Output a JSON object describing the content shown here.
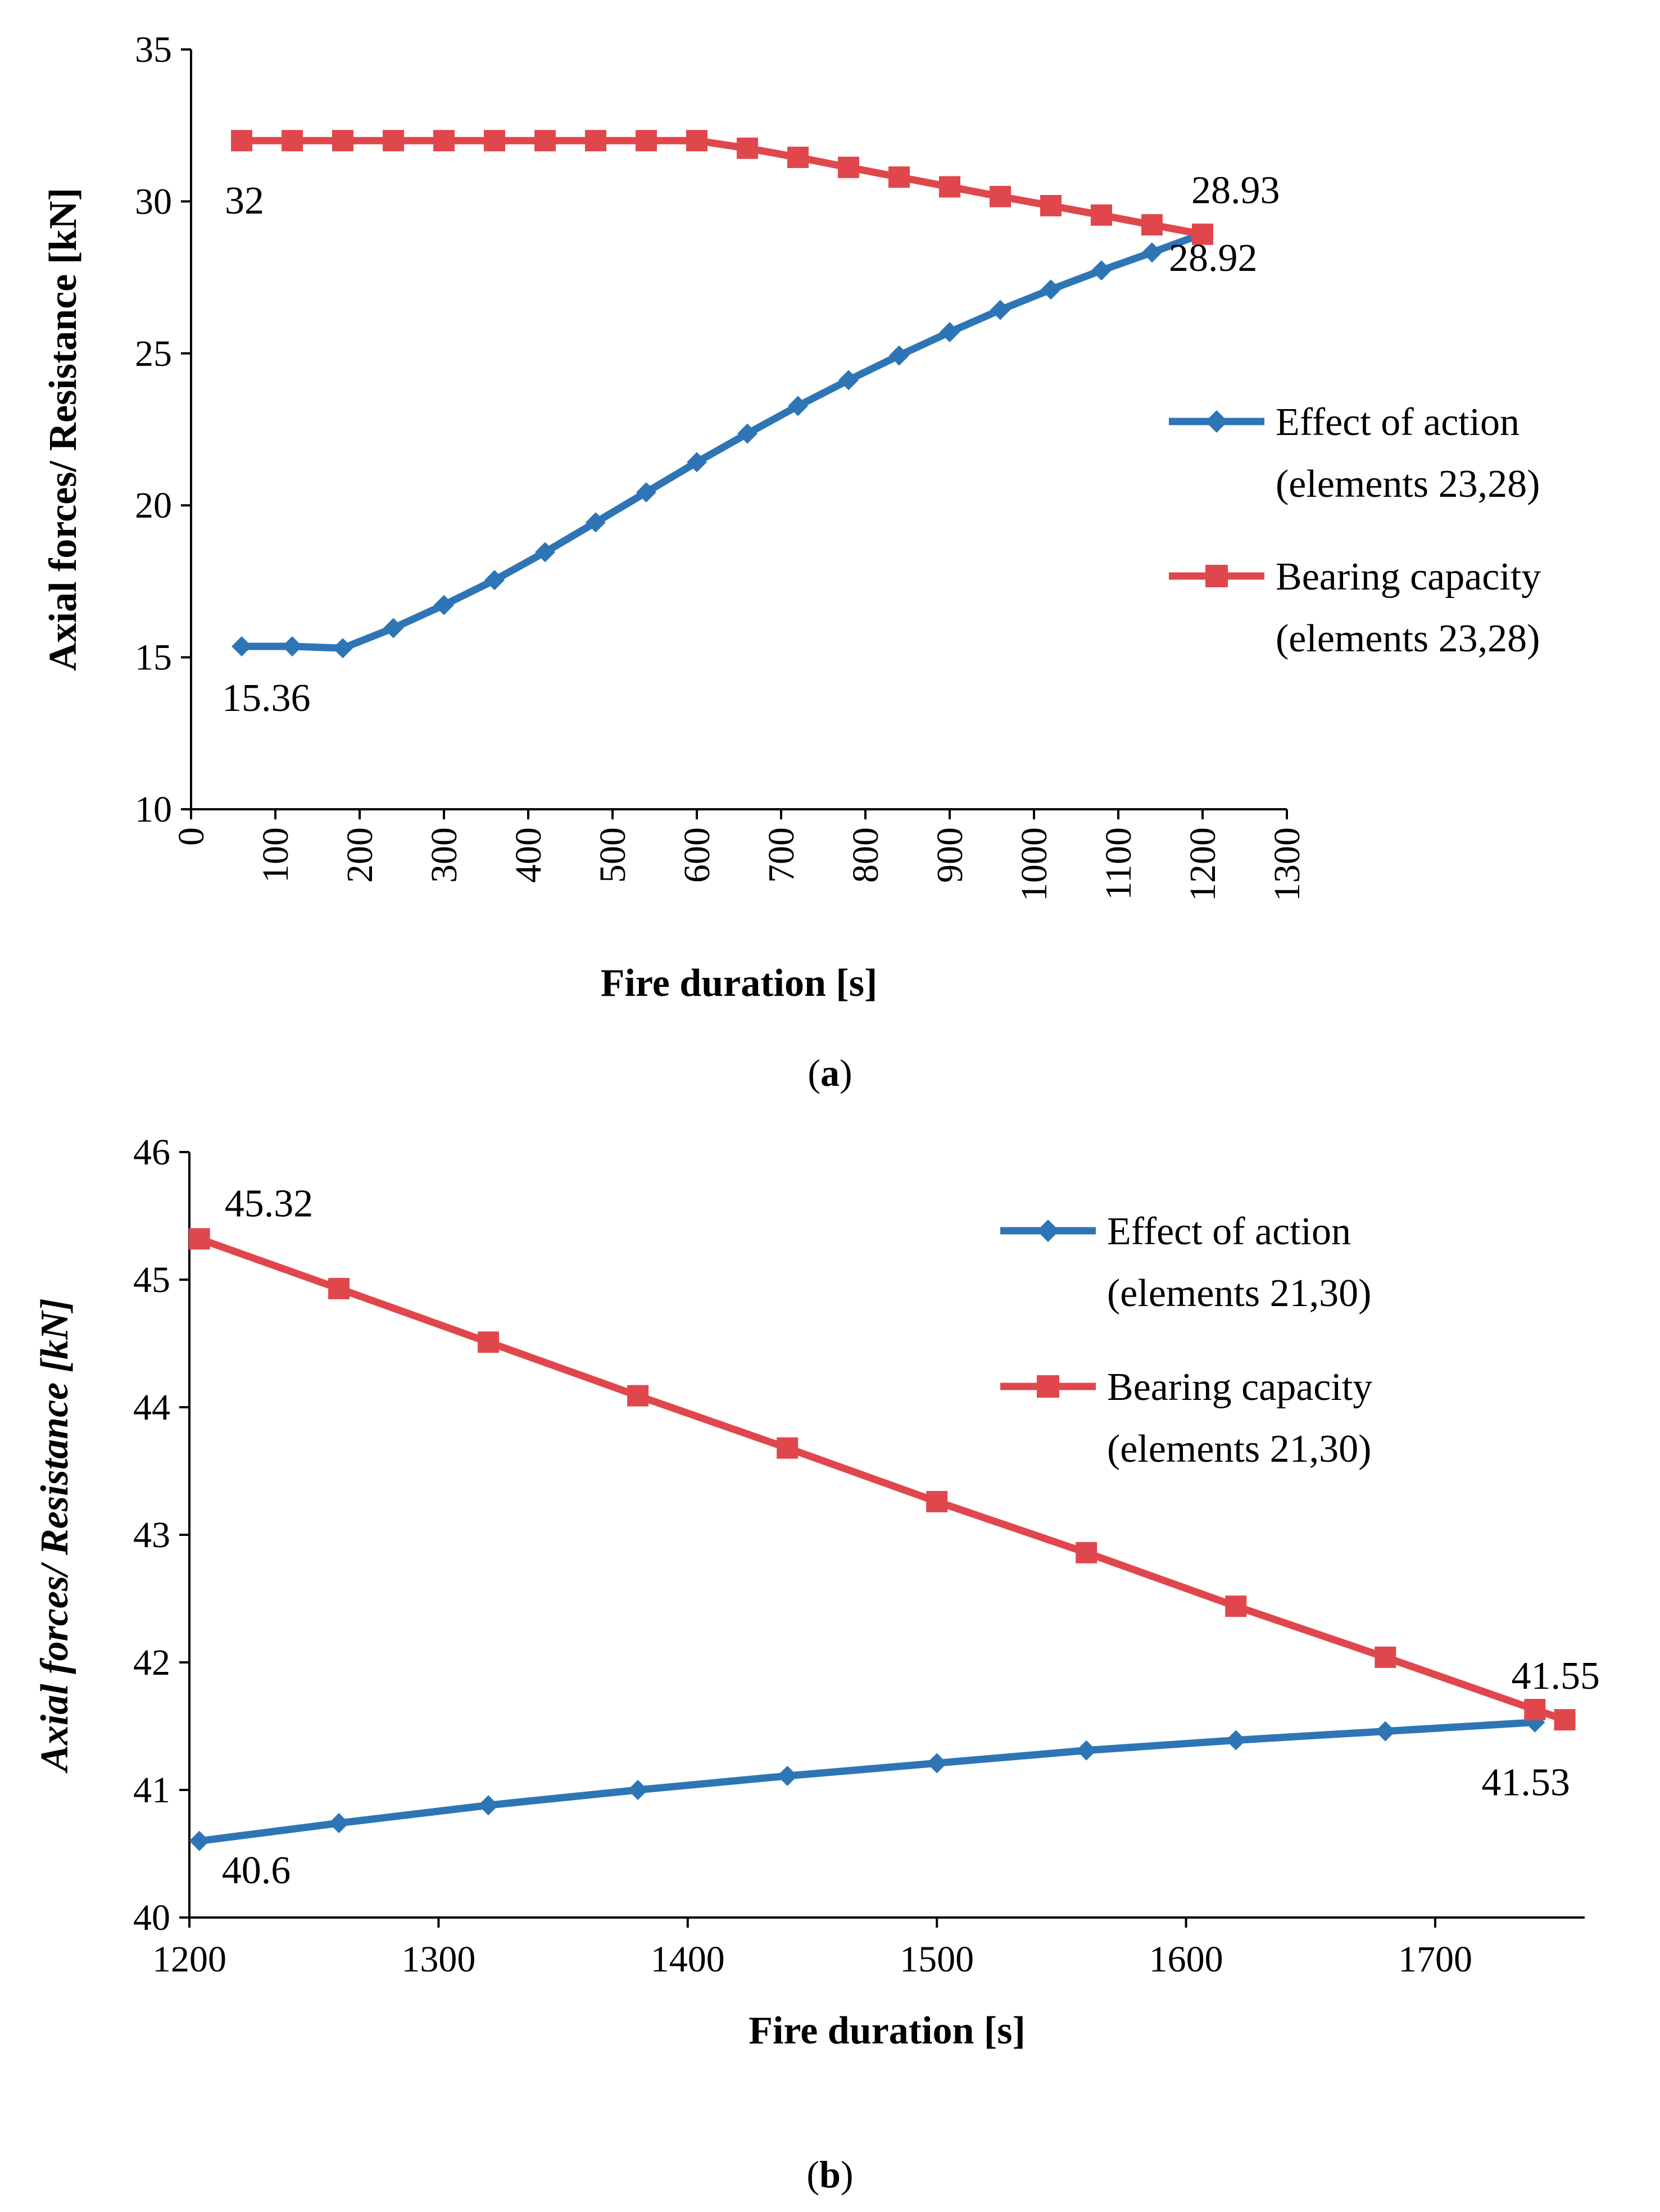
{
  "figure": {
    "panel_a_caption": {
      "open": "(",
      "letter": "a",
      "close": ")"
    },
    "panel_b_caption": {
      "open": "(",
      "letter": "b",
      "close": ")"
    }
  },
  "colors": {
    "series_blue": "#2E75B6",
    "series_red": "#E0474C",
    "axis": "#000000"
  },
  "chart_data": [
    {
      "type": "line",
      "xlabel": "Fire duration [s]",
      "ylabel": "Axial forces/ Resistance [kN]",
      "ylabel_italic": false,
      "xlim": [
        0,
        1300
      ],
      "ylim": [
        10,
        35
      ],
      "x_ticks": [
        "0",
        "100",
        "200",
        "300",
        "400",
        "500",
        "600",
        "700",
        "800",
        "900",
        "1000",
        "1100",
        "1200",
        "1300"
      ],
      "y_ticks": [
        "10",
        "15",
        "20",
        "25",
        "30",
        "35"
      ],
      "x_tick_rotation": "vertical",
      "grid": false,
      "legend_position": "right",
      "x": [
        60,
        120,
        180,
        240,
        300,
        360,
        420,
        480,
        540,
        600,
        660,
        720,
        780,
        840,
        900,
        960,
        1020,
        1080,
        1140,
        1200
      ],
      "series": [
        {
          "name": "Effect of action (elements 23,28)",
          "legend_lines": [
            "Effect of action",
            "(elements 23,28)"
          ],
          "marker": "diamond",
          "color": "#2E75B6",
          "values": [
            15.36,
            15.36,
            15.3,
            15.96,
            16.72,
            17.54,
            18.46,
            19.44,
            20.43,
            21.42,
            22.36,
            23.27,
            24.12,
            24.93,
            25.7,
            26.43,
            27.1,
            27.73,
            28.32,
            28.93
          ]
        },
        {
          "name": "Bearing capacity (elements 23,28)",
          "legend_lines": [
            "Bearing capacity",
            "(elements 23,28)"
          ],
          "marker": "square",
          "color": "#E0474C",
          "values": [
            32,
            32,
            32,
            32,
            32,
            32,
            32,
            32,
            32,
            32,
            31.75,
            31.45,
            31.12,
            30.8,
            30.48,
            30.16,
            29.86,
            29.55,
            29.23,
            28.92
          ]
        }
      ],
      "annotations": [
        {
          "text": "32",
          "series": 1,
          "index": 0,
          "place": "below"
        },
        {
          "text": "15.36",
          "series": 0,
          "index": 0,
          "place": "below"
        },
        {
          "text": "28.93",
          "series": 0,
          "index": 19,
          "place": "above"
        },
        {
          "text": "28.92",
          "series": 1,
          "index": 19,
          "place": "below"
        }
      ]
    },
    {
      "type": "line",
      "xlabel": "Fire duration [s]",
      "ylabel": "Axial forces/ Resistance [kN]",
      "ylabel_italic": true,
      "xlim": [
        1200,
        1760
      ],
      "ylim": [
        40,
        46
      ],
      "x_ticks": [
        "1200",
        "1300",
        "1400",
        "1500",
        "1600",
        "1700"
      ],
      "y_ticks": [
        "40",
        "41",
        "42",
        "43",
        "44",
        "45",
        "46"
      ],
      "x_tick_rotation": "horizontal",
      "grid": false,
      "legend_position": "top-right",
      "series": [
        {
          "name": "Effect of action (elements 21,30)",
          "legend_lines": [
            "Effect of action",
            "(elements 21,30)"
          ],
          "marker": "diamond",
          "color": "#2E75B6",
          "x": [
            1204,
            1260,
            1320,
            1380,
            1440,
            1500,
            1560,
            1620,
            1680,
            1740
          ],
          "values": [
            40.6,
            40.74,
            40.88,
            41.0,
            41.11,
            41.21,
            41.31,
            41.39,
            41.46,
            41.53
          ]
        },
        {
          "name": "Bearing capacity (elements 21,30)",
          "legend_lines": [
            "Bearing capacity",
            "(elements 21,30)"
          ],
          "marker": "square",
          "color": "#E0474C",
          "x": [
            1204,
            1260,
            1320,
            1380,
            1440,
            1500,
            1560,
            1620,
            1680,
            1740,
            1752
          ],
          "values": [
            45.32,
            44.93,
            44.51,
            44.09,
            43.68,
            43.26,
            42.86,
            42.44,
            42.04,
            41.63,
            41.55
          ]
        }
      ],
      "annotations": [
        {
          "text": "45.32",
          "series": 1,
          "index": 0,
          "place": "above"
        },
        {
          "text": "40.6",
          "series": 0,
          "index": 0,
          "place": "below"
        },
        {
          "text": "41.55",
          "series": 1,
          "index": 10,
          "place": "above"
        },
        {
          "text": "41.53",
          "series": 0,
          "index": 9,
          "place": "below"
        }
      ]
    }
  ]
}
